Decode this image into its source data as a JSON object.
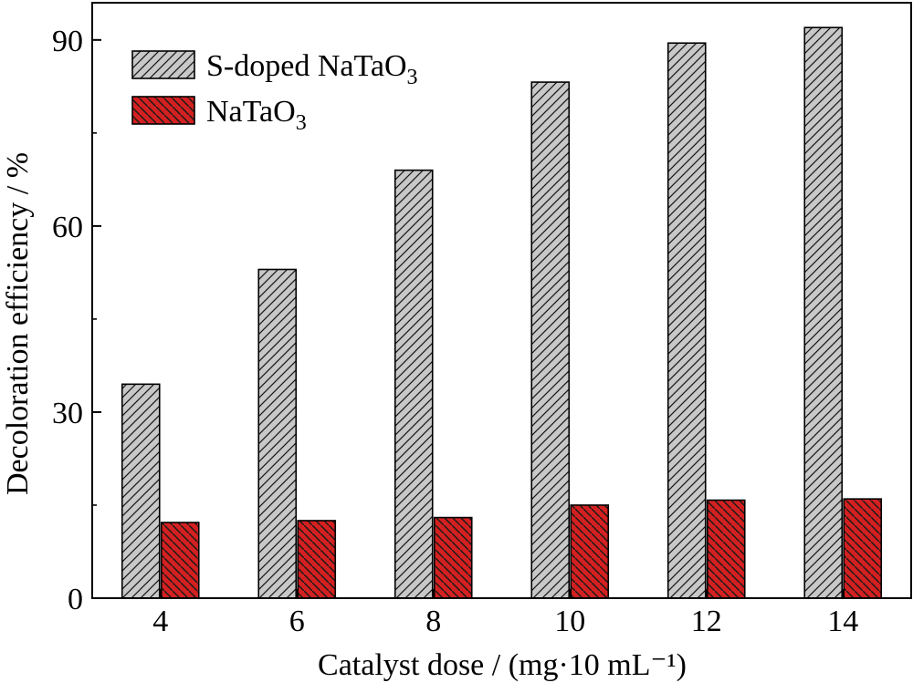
{
  "chart_data": {
    "type": "bar",
    "categories": [
      "4",
      "6",
      "8",
      "10",
      "12",
      "14"
    ],
    "series": [
      {
        "name": "S-doped NaTaO3",
        "name_main": "S-doped NaTaO",
        "name_sub": "3",
        "color": "#c8c8c8",
        "values": [
          34.5,
          53,
          69,
          83.2,
          89.5,
          92
        ]
      },
      {
        "name": "NaTaO3",
        "name_main": "NaTaO",
        "name_sub": "3",
        "color": "#d42020",
        "values": [
          12.2,
          12.5,
          13,
          15,
          15.8,
          16
        ]
      }
    ],
    "xlabel": "Catalyst dose / (mg·10 mL⁻¹)",
    "ylabel": "Decoloration efficiency / %",
    "yticks": [
      0,
      30,
      60,
      90
    ],
    "ylim": [
      0,
      96
    ],
    "legend_position": "top-left",
    "grid": false
  }
}
